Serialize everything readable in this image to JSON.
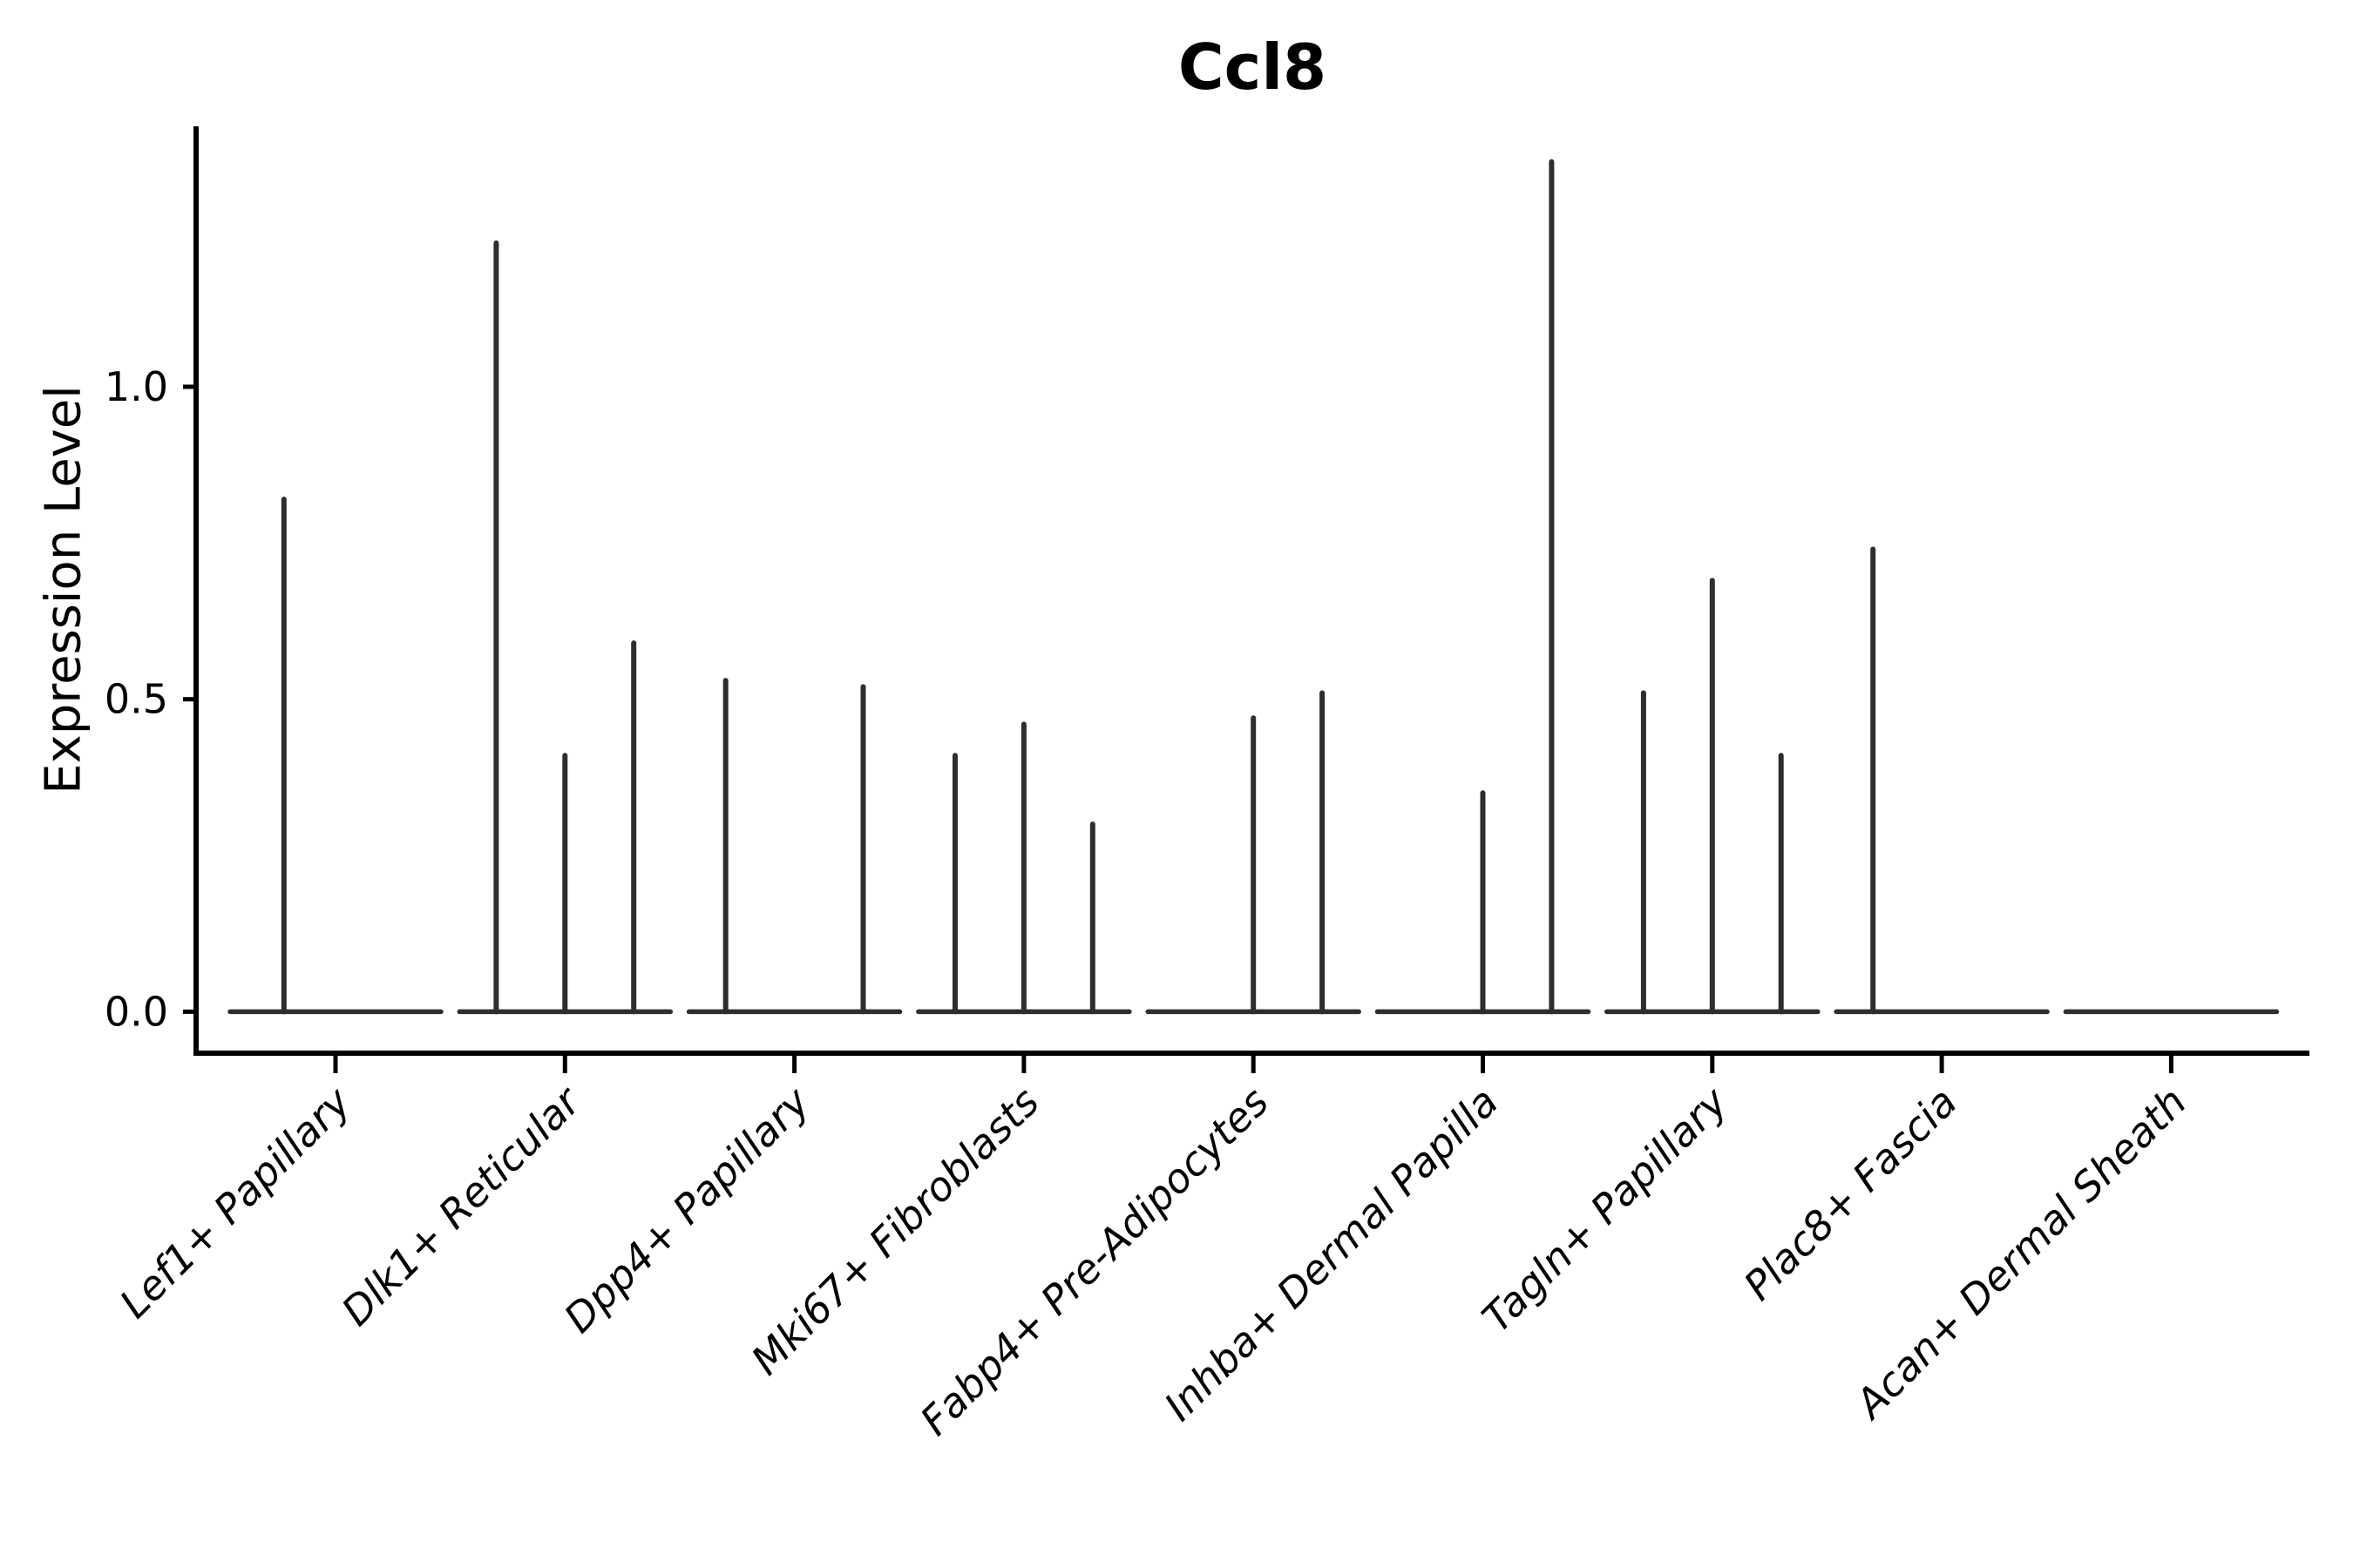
{
  "colors": {
    "background": "#ffffff",
    "axis": "#000000",
    "text": "#000000",
    "violin_stroke": "#2e2e2e"
  },
  "chart_data": {
    "type": "violin",
    "title": "Ccl8",
    "xlabel": "",
    "ylabel": "Expression Level",
    "ylim": [
      -0.07,
      1.42
    ],
    "yticks": [
      0.0,
      0.5,
      1.0
    ],
    "ytick_labels": [
      "0.0",
      "0.5",
      "1.0"
    ],
    "grid": false,
    "legend": false,
    "categories": [
      "Lef1+ Papillary",
      "Dlk1+ Reticular",
      "Dpp4+ Papillary",
      "Mki67+ Fibroblasts",
      "Fabp4+ Pre-Adipocytes",
      "Inhba+ Dermal Papilla",
      "Tagln+ Papillary",
      "Plac8+ Fascia",
      "Acan+ Dermal Sheath"
    ],
    "series": [
      {
        "category": "Lef1+ Papillary",
        "violin_peaks": [
          0.82,
          0.0
        ]
      },
      {
        "category": "Dlk1+ Reticular",
        "violin_peaks": [
          1.23,
          0.41,
          0.59
        ]
      },
      {
        "category": "Dpp4+ Papillary",
        "violin_peaks": [
          0.53,
          0.0,
          0.52
        ]
      },
      {
        "category": "Mki67+ Fibroblasts",
        "violin_peaks": [
          0.41,
          0.46,
          0.3
        ]
      },
      {
        "category": "Fabp4+ Pre-Adipocytes",
        "violin_peaks": [
          0.0,
          0.47,
          0.51
        ]
      },
      {
        "category": "Inhba+ Dermal Papilla",
        "violin_peaks": [
          0.0,
          0.35,
          1.36
        ]
      },
      {
        "category": "Tagln+ Papillary",
        "violin_peaks": [
          0.51,
          0.69,
          0.41
        ]
      },
      {
        "category": "Plac8+ Fascia",
        "violin_peaks": [
          0.74,
          0.0,
          0.0
        ]
      },
      {
        "category": "Acan+ Dermal Sheath",
        "violin_peaks": [
          0.0,
          0.0,
          0.0
        ]
      }
    ]
  }
}
